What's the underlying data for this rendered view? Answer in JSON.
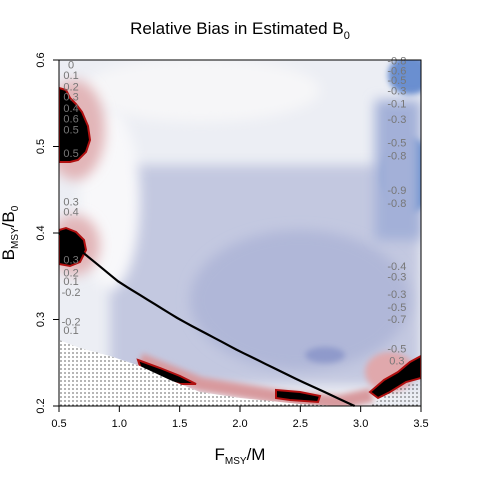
{
  "chart_data": {
    "type": "heatmap",
    "title": "Relative Bias in Estimated B",
    "title_subscript": "0",
    "xlabel": {
      "base": "F",
      "sub": "MSY",
      "rest": "/M"
    },
    "ylabel": {
      "base": "B",
      "sub": "MSY",
      "mid": "/B",
      "sub2": "0"
    },
    "xlim": [
      0.5,
      3.5
    ],
    "ylim": [
      0.2,
      0.6
    ],
    "x_ticks": [
      "0.5",
      "1.0",
      "1.5",
      "2.0",
      "2.5",
      "3.0",
      "3.5"
    ],
    "y_ticks": [
      "0.2",
      "0.3",
      "0.4",
      "0.5",
      "0.6"
    ],
    "colors": {
      "strong_negative": "#4a7fcc",
      "negative": "#a9b1d4",
      "zero": "#ffffff",
      "positive": "#d8a6a8",
      "strong_positive": "#b01010",
      "saturated": "#000000",
      "curve": "#000000"
    },
    "curve": {
      "description_points": [
        [
          0.5,
          0.4
        ],
        [
          1.0,
          0.343
        ],
        [
          1.5,
          0.3
        ],
        [
          2.0,
          0.263
        ],
        [
          2.5,
          0.229
        ],
        [
          2.95,
          0.2
        ]
      ]
    },
    "infeasible_region": "stippled area below lower boundary",
    "contour_labels": [
      {
        "x": 0.6,
        "y": 0.59,
        "text": "0"
      },
      {
        "x": 0.6,
        "y": 0.578,
        "text": "0.1"
      },
      {
        "x": 0.6,
        "y": 0.565,
        "text": "0.2"
      },
      {
        "x": 0.6,
        "y": 0.553,
        "text": "0.3"
      },
      {
        "x": 0.6,
        "y": 0.54,
        "text": "0.4"
      },
      {
        "x": 0.6,
        "y": 0.528,
        "text": "0.6"
      },
      {
        "x": 0.6,
        "y": 0.515,
        "text": "0.5"
      },
      {
        "x": 0.6,
        "y": 0.488,
        "text": "0.5"
      },
      {
        "x": 0.6,
        "y": 0.432,
        "text": "0.3"
      },
      {
        "x": 0.6,
        "y": 0.42,
        "text": "0.4"
      },
      {
        "x": 0.6,
        "y": 0.365,
        "text": "0.3"
      },
      {
        "x": 0.6,
        "y": 0.35,
        "text": "0.2"
      },
      {
        "x": 0.6,
        "y": 0.34,
        "text": "0.1"
      },
      {
        "x": 0.6,
        "y": 0.327,
        "text": "-0.2"
      },
      {
        "x": 0.6,
        "y": 0.293,
        "text": "-0.2"
      },
      {
        "x": 0.6,
        "y": 0.283,
        "text": "0.1"
      },
      {
        "x": 3.3,
        "y": 0.595,
        "text": "-0.8"
      },
      {
        "x": 3.3,
        "y": 0.583,
        "text": "-0.6"
      },
      {
        "x": 3.3,
        "y": 0.572,
        "text": "-0.5"
      },
      {
        "x": 3.3,
        "y": 0.56,
        "text": "-0.3"
      },
      {
        "x": 3.3,
        "y": 0.545,
        "text": "-0.1"
      },
      {
        "x": 3.3,
        "y": 0.527,
        "text": "-0.3"
      },
      {
        "x": 3.3,
        "y": 0.5,
        "text": "-0.5"
      },
      {
        "x": 3.3,
        "y": 0.485,
        "text": "-0.8"
      },
      {
        "x": 3.3,
        "y": 0.445,
        "text": "-0.9"
      },
      {
        "x": 3.3,
        "y": 0.43,
        "text": "-0.8"
      },
      {
        "x": 3.3,
        "y": 0.357,
        "text": "-0.4"
      },
      {
        "x": 3.3,
        "y": 0.345,
        "text": "-0.3"
      },
      {
        "x": 3.3,
        "y": 0.325,
        "text": "-0.3"
      },
      {
        "x": 3.3,
        "y": 0.31,
        "text": "-0.5"
      },
      {
        "x": 3.3,
        "y": 0.296,
        "text": "-0.7"
      },
      {
        "x": 3.3,
        "y": 0.262,
        "text": "-0.5"
      },
      {
        "x": 3.3,
        "y": 0.248,
        "text": "0.3"
      }
    ]
  }
}
